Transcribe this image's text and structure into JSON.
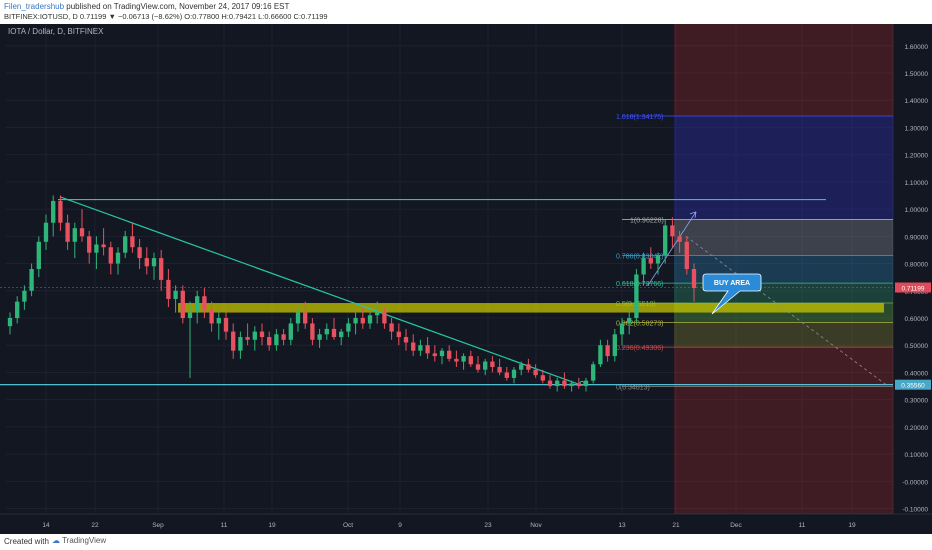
{
  "header": {
    "author": "Filen_tradershub",
    "published": "published on TradingView.com, November 24, 2017 09:16 EST",
    "symbol_line": "BITFINEX:IOTUSD, D  0.71199 ▼ −0.06713 (−8.62%) O:0.77800 H:0.79421 L:0.66600 C:0.71199"
  },
  "footer": {
    "created_with": "Created with",
    "brand": "TradingView"
  },
  "chart_data": {
    "type": "candlestick",
    "title": "IOTA / Dollar, D, BITFINEX",
    "ylim": [
      -0.12,
      1.68
    ],
    "y_ticks": [
      "-0.10000",
      "-0.00000",
      "0.10000",
      "0.20000",
      "0.30000",
      "0.40000",
      "0.50000",
      "0.60000",
      "0.70000",
      "0.80000",
      "0.90000",
      "1.00000",
      "1.10000",
      "1.20000",
      "1.30000",
      "1.40000",
      "1.50000",
      "1.60000"
    ],
    "x_ticks": [
      "14",
      "22",
      "Sep",
      "11",
      "19",
      "Oct",
      "9",
      "23",
      "Nov",
      "13",
      "21",
      "Dec",
      "11",
      "19"
    ],
    "last_price_label": "0.71199",
    "support_price_label": "0.35560",
    "fib_levels": [
      {
        "label": "1.618(1.34175)",
        "value": 1.342
      },
      {
        "label": "1(0.96228)",
        "value": 0.962
      },
      {
        "label": "0.786(0.83042)",
        "value": 0.83
      },
      {
        "label": "0.618(0.72766)",
        "value": 0.728
      },
      {
        "label": "0.5(0.65510)",
        "value": 0.655
      },
      {
        "label": "0.382(0.58273)",
        "value": 0.583
      },
      {
        "label": "0.236(0.49306)",
        "value": 0.493
      },
      {
        "label": "0(0.34813)",
        "value": 0.348
      }
    ],
    "annotation": "BUY AREA",
    "candles": [
      [
        0.57,
        0.62,
        0.54,
        0.6
      ],
      [
        0.6,
        0.68,
        0.58,
        0.66
      ],
      [
        0.66,
        0.72,
        0.63,
        0.7
      ],
      [
        0.7,
        0.8,
        0.68,
        0.78
      ],
      [
        0.78,
        0.9,
        0.75,
        0.88
      ],
      [
        0.88,
        0.98,
        0.85,
        0.95
      ],
      [
        0.95,
        1.05,
        0.9,
        1.03
      ],
      [
        1.03,
        1.05,
        0.92,
        0.95
      ],
      [
        0.95,
        0.98,
        0.85,
        0.88
      ],
      [
        0.88,
        0.95,
        0.82,
        0.93
      ],
      [
        0.93,
        1.0,
        0.88,
        0.9
      ],
      [
        0.9,
        0.92,
        0.8,
        0.84
      ],
      [
        0.84,
        0.9,
        0.78,
        0.87
      ],
      [
        0.87,
        0.93,
        0.83,
        0.86
      ],
      [
        0.86,
        0.88,
        0.76,
        0.8
      ],
      [
        0.8,
        0.86,
        0.76,
        0.84
      ],
      [
        0.84,
        0.92,
        0.82,
        0.9
      ],
      [
        0.9,
        0.95,
        0.84,
        0.86
      ],
      [
        0.86,
        0.89,
        0.78,
        0.82
      ],
      [
        0.82,
        0.86,
        0.76,
        0.79
      ],
      [
        0.79,
        0.84,
        0.74,
        0.82
      ],
      [
        0.82,
        0.85,
        0.7,
        0.74
      ],
      [
        0.74,
        0.78,
        0.64,
        0.67
      ],
      [
        0.67,
        0.72,
        0.62,
        0.7
      ],
      [
        0.7,
        0.72,
        0.58,
        0.6
      ],
      [
        0.6,
        0.66,
        0.38,
        0.62
      ],
      [
        0.62,
        0.7,
        0.58,
        0.68
      ],
      [
        0.68,
        0.71,
        0.6,
        0.63
      ],
      [
        0.63,
        0.66,
        0.55,
        0.58
      ],
      [
        0.58,
        0.62,
        0.52,
        0.6
      ],
      [
        0.6,
        0.62,
        0.52,
        0.55
      ],
      [
        0.55,
        0.58,
        0.45,
        0.48
      ],
      [
        0.48,
        0.55,
        0.45,
        0.53
      ],
      [
        0.53,
        0.58,
        0.5,
        0.52
      ],
      [
        0.52,
        0.57,
        0.48,
        0.55
      ],
      [
        0.55,
        0.58,
        0.5,
        0.53
      ],
      [
        0.53,
        0.55,
        0.48,
        0.5
      ],
      [
        0.5,
        0.56,
        0.48,
        0.54
      ],
      [
        0.54,
        0.56,
        0.5,
        0.52
      ],
      [
        0.52,
        0.6,
        0.5,
        0.58
      ],
      [
        0.58,
        0.64,
        0.55,
        0.62
      ],
      [
        0.62,
        0.66,
        0.56,
        0.58
      ],
      [
        0.58,
        0.6,
        0.5,
        0.52
      ],
      [
        0.52,
        0.56,
        0.49,
        0.54
      ],
      [
        0.54,
        0.58,
        0.52,
        0.56
      ],
      [
        0.56,
        0.6,
        0.52,
        0.53
      ],
      [
        0.53,
        0.56,
        0.5,
        0.55
      ],
      [
        0.55,
        0.6,
        0.53,
        0.58
      ],
      [
        0.58,
        0.62,
        0.54,
        0.6
      ],
      [
        0.6,
        0.64,
        0.56,
        0.58
      ],
      [
        0.58,
        0.62,
        0.56,
        0.61
      ],
      [
        0.61,
        0.66,
        0.58,
        0.62
      ],
      [
        0.62,
        0.64,
        0.56,
        0.58
      ],
      [
        0.58,
        0.6,
        0.52,
        0.55
      ],
      [
        0.55,
        0.58,
        0.5,
        0.53
      ],
      [
        0.53,
        0.56,
        0.48,
        0.51
      ],
      [
        0.51,
        0.54,
        0.46,
        0.48
      ],
      [
        0.48,
        0.52,
        0.46,
        0.5
      ],
      [
        0.5,
        0.53,
        0.45,
        0.47
      ],
      [
        0.47,
        0.5,
        0.44,
        0.46
      ],
      [
        0.46,
        0.49,
        0.43,
        0.48
      ],
      [
        0.48,
        0.5,
        0.44,
        0.45
      ],
      [
        0.45,
        0.48,
        0.42,
        0.44
      ],
      [
        0.44,
        0.47,
        0.41,
        0.46
      ],
      [
        0.46,
        0.48,
        0.42,
        0.43
      ],
      [
        0.43,
        0.46,
        0.4,
        0.41
      ],
      [
        0.41,
        0.45,
        0.39,
        0.44
      ],
      [
        0.44,
        0.46,
        0.4,
        0.42
      ],
      [
        0.42,
        0.45,
        0.39,
        0.4
      ],
      [
        0.4,
        0.42,
        0.37,
        0.38
      ],
      [
        0.38,
        0.42,
        0.36,
        0.41
      ],
      [
        0.41,
        0.44,
        0.39,
        0.43
      ],
      [
        0.43,
        0.45,
        0.4,
        0.41
      ],
      [
        0.41,
        0.43,
        0.38,
        0.39
      ],
      [
        0.39,
        0.41,
        0.36,
        0.37
      ],
      [
        0.37,
        0.39,
        0.34,
        0.35
      ],
      [
        0.35,
        0.38,
        0.33,
        0.37
      ],
      [
        0.37,
        0.4,
        0.34,
        0.35
      ],
      [
        0.35,
        0.37,
        0.33,
        0.36
      ],
      [
        0.36,
        0.38,
        0.34,
        0.35
      ],
      [
        0.35,
        0.38,
        0.33,
        0.37
      ],
      [
        0.37,
        0.44,
        0.36,
        0.43
      ],
      [
        0.43,
        0.52,
        0.42,
        0.5
      ],
      [
        0.5,
        0.52,
        0.44,
        0.46
      ],
      [
        0.46,
        0.56,
        0.44,
        0.54
      ],
      [
        0.54,
        0.6,
        0.5,
        0.58
      ],
      [
        0.58,
        0.63,
        0.54,
        0.6
      ],
      [
        0.6,
        0.78,
        0.58,
        0.76
      ],
      [
        0.76,
        0.84,
        0.72,
        0.82
      ],
      [
        0.82,
        0.86,
        0.78,
        0.8
      ],
      [
        0.8,
        0.84,
        0.76,
        0.83
      ],
      [
        0.83,
        0.96,
        0.8,
        0.94
      ],
      [
        0.94,
        0.97,
        0.86,
        0.9
      ],
      [
        0.9,
        0.92,
        0.84,
        0.88
      ],
      [
        0.88,
        0.9,
        0.76,
        0.78
      ],
      [
        0.78,
        0.8,
        0.66,
        0.71
      ]
    ]
  }
}
